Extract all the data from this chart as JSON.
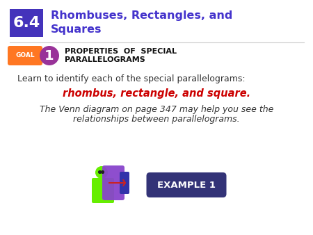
{
  "bg_color": "#ffffff",
  "section_num": "6.4",
  "section_num_bg": "#4433bb",
  "section_num_color": "#ffffff",
  "title_line1": "Rhombuses, Rectangles, and",
  "title_line2": "Squares",
  "title_color": "#4433cc",
  "goal_bg": "#ff7722",
  "goal_text": "GOAL",
  "goal_text_color": "#ffffff",
  "goal_num": "1",
  "goal_num_bg": "#993399",
  "goal_num_color": "#ffffff",
  "properties_text_line1": "PROPERTIES  OF  SPECIAL",
  "properties_text_line2": "PARALLELOGRAMS",
  "properties_color": "#111111",
  "learn_text": "Learn to identify each of the special parallelograms:",
  "learn_color": "#333333",
  "highlight_text": "rhombus, rectangle, and square.",
  "highlight_color": "#cc0000",
  "venn_text_line1": "The Venn diagram on page 347 may help you see the",
  "venn_text_line2": "relationships between parallelograms.",
  "venn_color": "#333333",
  "example_label": "EXAMPLE 1",
  "example_bg": "#333377",
  "example_color": "#ffffff",
  "figure_person_color": "#66ee00",
  "figure_overlay_color": "#8844cc",
  "figure_overlay2_color": "#3333aa",
  "arrow_color": "#cc2222"
}
